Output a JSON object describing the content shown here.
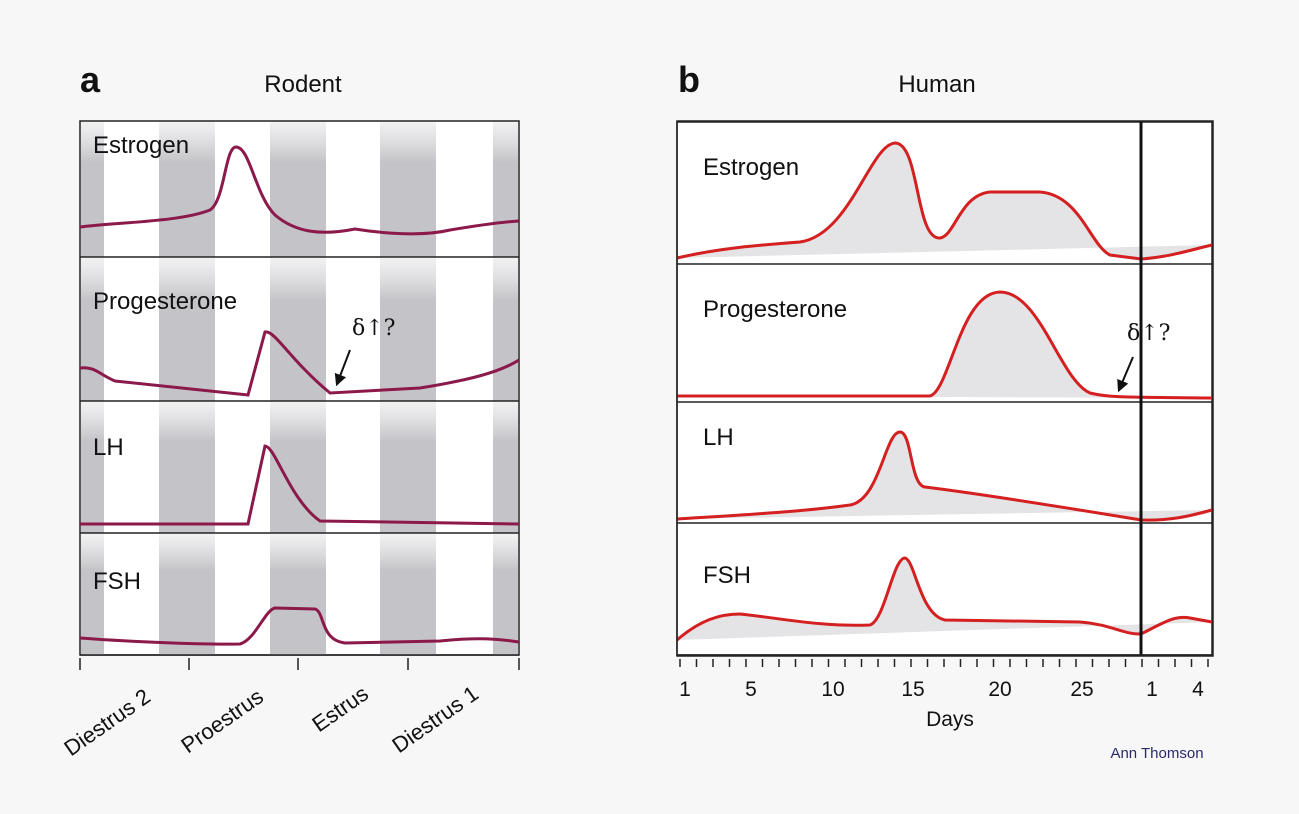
{
  "panels": [
    {
      "label": "a",
      "title": "Rodent",
      "traces": [
        "Estrogen",
        "Progesterone",
        "LH",
        "FSH"
      ],
      "annotation": "δ↑?",
      "stages": [
        "Diestrus 2",
        "Proestrus",
        "Estrus",
        "Diestrus 1"
      ]
    },
    {
      "label": "b",
      "title": "Human",
      "traces": [
        "Estrogen",
        "Progesterone",
        "LH",
        "FSH"
      ],
      "annotation": "δ↑?",
      "ticks": [
        "1",
        "5",
        "10",
        "15",
        "20",
        "25",
        "1",
        "4"
      ],
      "axis_label": "Days"
    }
  ],
  "credit": "Ann Thomson"
}
